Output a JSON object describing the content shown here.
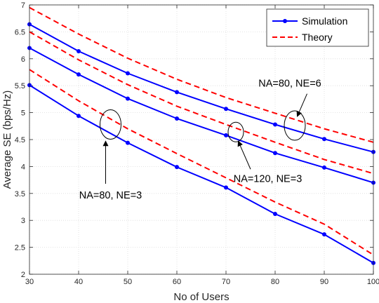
{
  "chart_data": {
    "type": "line",
    "title": "",
    "xlabel": "No of Users",
    "ylabel": "Average SE (bps/Hz)",
    "xlim": [
      30,
      100
    ],
    "ylim": [
      2,
      7
    ],
    "xticks": [
      30,
      40,
      50,
      60,
      70,
      80,
      90,
      100
    ],
    "yticks": [
      2,
      2.5,
      3,
      3.5,
      4,
      4.5,
      5,
      5.5,
      6,
      6.5,
      7
    ],
    "grid": true,
    "legend_position": "top-right",
    "x": [
      30,
      40,
      50,
      60,
      70,
      80,
      90,
      100
    ],
    "legend": [
      "Simulation",
      "Theory"
    ],
    "series": [
      {
        "group": "NA=80, NE=6",
        "kind": "Simulation",
        "color": "#0000ff",
        "values": [
          6.64,
          6.14,
          5.73,
          5.38,
          5.07,
          4.78,
          4.51,
          4.27
        ]
      },
      {
        "group": "NA=80, NE=6",
        "kind": "Theory",
        "color": "#ff0000",
        "values": [
          6.95,
          6.46,
          6.01,
          5.62,
          5.28,
          4.99,
          4.7,
          4.45
        ]
      },
      {
        "group": "NA=120, NE=3",
        "kind": "Simulation",
        "color": "#0000ff",
        "values": [
          6.2,
          5.71,
          5.26,
          4.89,
          4.58,
          4.25,
          3.98,
          3.7
        ]
      },
      {
        "group": "NA=120, NE=3",
        "kind": "Theory",
        "color": "#ff0000",
        "values": [
          6.5,
          5.98,
          5.52,
          5.12,
          4.78,
          4.45,
          4.13,
          3.87
        ]
      },
      {
        "group": "NA=80, NE=3",
        "kind": "Simulation",
        "color": "#0000ff",
        "values": [
          5.51,
          4.94,
          4.44,
          3.99,
          3.61,
          3.12,
          2.74,
          2.21
        ]
      },
      {
        "group": "NA=80, NE=3",
        "kind": "Theory",
        "color": "#ff0000",
        "values": [
          5.8,
          5.22,
          4.7,
          4.24,
          3.79,
          3.34,
          2.93,
          2.36
        ]
      }
    ],
    "annotations": [
      {
        "text": "NA=80, NE=6",
        "ellipse_at": [
          84.0,
          4.76
        ],
        "text_at": [
          83.0,
          5.55
        ],
        "arrow_from": [
          86.5,
          5.35
        ],
        "arrow_to": [
          84.5,
          4.93
        ]
      },
      {
        "text": "NA=120, NE=3",
        "ellipse_at": [
          72.0,
          4.64
        ],
        "text_at": [
          78.5,
          3.78
        ],
        "arrow_from": [
          75.0,
          3.95
        ],
        "arrow_to": [
          72.5,
          4.47
        ]
      },
      {
        "text": "NA=80, NE=3",
        "ellipse_at": [
          46.5,
          4.78
        ],
        "text_at": [
          46.5,
          3.47
        ],
        "arrow_from": [
          45.5,
          3.68
        ],
        "arrow_to": [
          45.5,
          4.47
        ]
      }
    ]
  }
}
